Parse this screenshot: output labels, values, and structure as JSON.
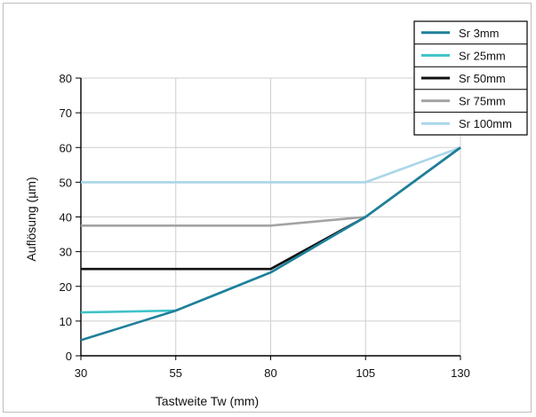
{
  "chart_data": {
    "type": "line",
    "xlabel": "Tastweite Tw (mm)",
    "ylabel": "Auflösung (µm)",
    "xlim": [
      30,
      130
    ],
    "ylim": [
      0,
      80
    ],
    "x_ticks": [
      30,
      55,
      80,
      105,
      130
    ],
    "y_ticks": [
      0,
      10,
      20,
      30,
      40,
      50,
      60,
      70,
      80
    ],
    "grid": true,
    "legend_position": "top-right",
    "series": [
      {
        "name": "Sr 3mm",
        "color": "#1f7f9a",
        "x": [
          30,
          55,
          80,
          105,
          130
        ],
        "y": [
          4.5,
          13,
          24,
          40,
          60
        ]
      },
      {
        "name": "Sr 25mm",
        "color": "#3fc3c8",
        "x": [
          30,
          55,
          80,
          105,
          130
        ],
        "y": [
          12.5,
          13,
          24,
          40,
          60
        ]
      },
      {
        "name": "Sr 50mm",
        "color": "#111111",
        "x": [
          30,
          80,
          105,
          130
        ],
        "y": [
          25,
          25,
          40,
          60
        ]
      },
      {
        "name": "Sr 75mm",
        "color": "#a3a3a3",
        "x": [
          30,
          80,
          105,
          130
        ],
        "y": [
          37.5,
          37.5,
          40,
          60
        ]
      },
      {
        "name": "Sr 100mm",
        "color": "#a9d6e8",
        "x": [
          30,
          105,
          130
        ],
        "y": [
          50,
          50,
          60
        ]
      }
    ]
  }
}
